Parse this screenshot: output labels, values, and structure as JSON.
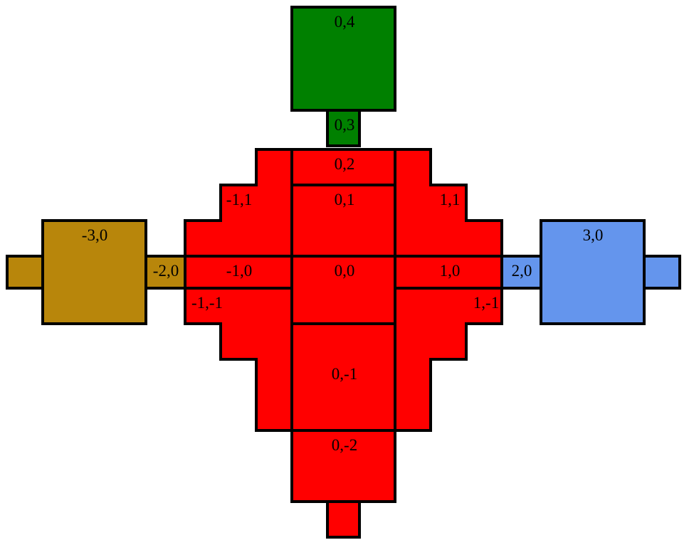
{
  "colors": {
    "red": "#ff0000",
    "green": "#008000",
    "gold": "#b8860b",
    "blue": "#6495ed",
    "stroke": "#000000"
  },
  "tiles": [
    {
      "id": "0,4",
      "label": "0,4",
      "color": "green"
    },
    {
      "id": "0,3",
      "label": "0,3",
      "color": "green"
    },
    {
      "id": "0,2",
      "label": "0,2",
      "color": "red"
    },
    {
      "id": "0,1",
      "label": "0,1",
      "color": "red"
    },
    {
      "id": "-1,1",
      "label": "-1,1",
      "color": "red"
    },
    {
      "id": "1,1",
      "label": "1,1",
      "color": "red"
    },
    {
      "id": "-1,0",
      "label": "-1,0",
      "color": "red"
    },
    {
      "id": "0,0",
      "label": "0,0",
      "color": "red"
    },
    {
      "id": "1,0",
      "label": "1,0",
      "color": "red"
    },
    {
      "id": "-1,-1",
      "label": "-1,-1",
      "color": "red"
    },
    {
      "id": "1,-1",
      "label": "1,-1",
      "color": "red"
    },
    {
      "id": "0,-1",
      "label": "0,-1",
      "color": "red"
    },
    {
      "id": "0,-2",
      "label": "0,-2",
      "color": "red"
    },
    {
      "id": "-2,0",
      "label": "-2,0",
      "color": "gold"
    },
    {
      "id": "-3,0",
      "label": "-3,0",
      "color": "gold"
    },
    {
      "id": "2,0",
      "label": "2,0",
      "color": "blue"
    },
    {
      "id": "3,0",
      "label": "3,0",
      "color": "blue"
    }
  ]
}
